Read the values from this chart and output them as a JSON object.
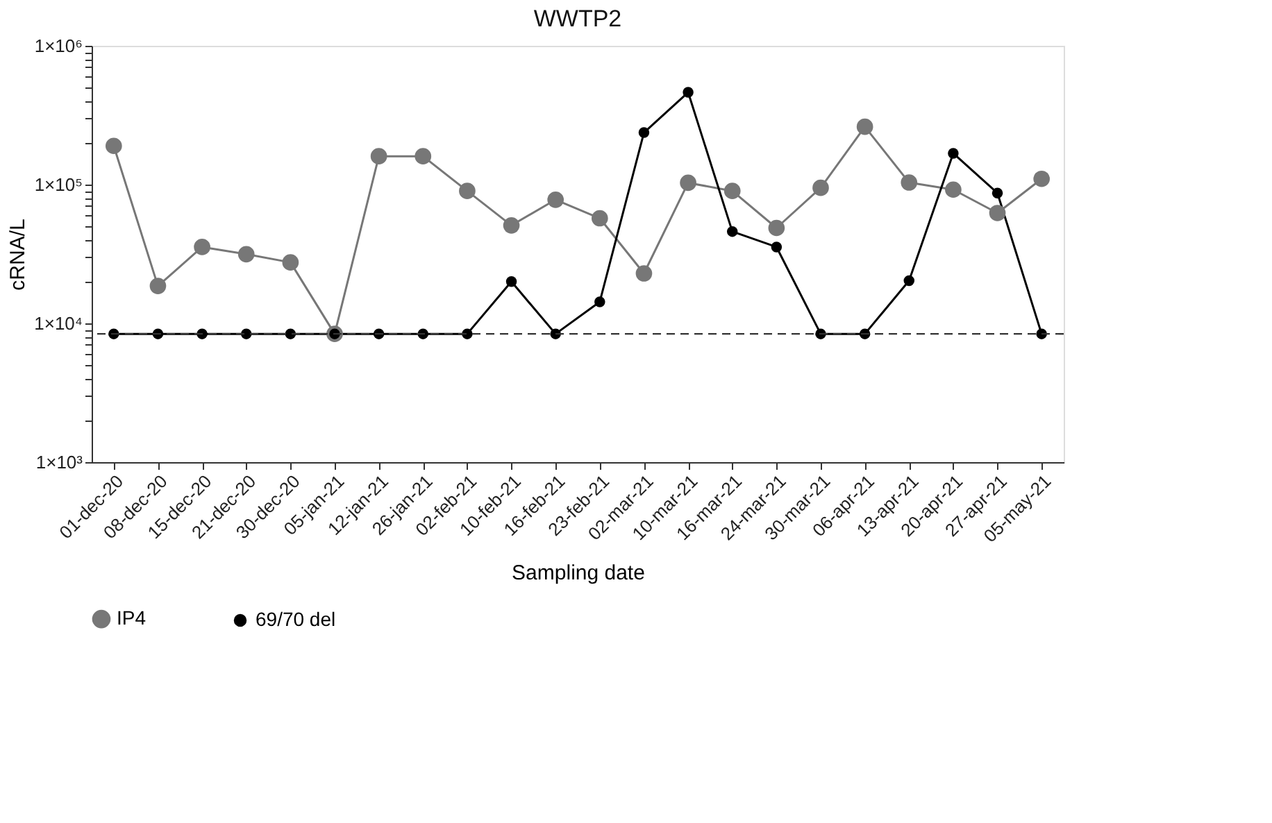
{
  "chart_data": {
    "type": "line",
    "title": "WWTP2",
    "xlabel": "Sampling date",
    "ylabel": "cRNA/L",
    "categories": [
      "01-dec-20",
      "08-dec-20",
      "15-dec-20",
      "21-dec-20",
      "30-dec-20",
      "05-jan-21",
      "12-jan-21",
      "26-jan-21",
      "02-feb-21",
      "10-feb-21",
      "16-feb-21",
      "23-feb-21",
      "02-mar-21",
      "10-mar-21",
      "16-mar-21",
      "24-mar-21",
      "30-mar-21",
      "06-apr-21",
      "13-apr-21",
      "20-apr-21",
      "27-apr-21",
      "05-may-21"
    ],
    "series": [
      {
        "name": "IP4",
        "color": "#777777",
        "values": [
          190000,
          18600,
          35500,
          31500,
          27500,
          8400,
          160000,
          160000,
          90000,
          50800,
          77800,
          57200,
          22900,
          103000,
          90000,
          48700,
          94800,
          261000,
          103500,
          92000,
          62400,
          110000
        ]
      },
      {
        "name": "69/70 del",
        "color": "#000000",
        "values": [
          8400,
          8400,
          8400,
          8400,
          8400,
          8400,
          8400,
          8400,
          8400,
          20000,
          8400,
          14300,
          237000,
          462000,
          45900,
          35500,
          8400,
          8400,
          20300,
          168000,
          86900,
          8400
        ]
      }
    ],
    "log": "y",
    "ylim": [
      1000,
      1000000
    ],
    "yticks": [
      {
        "value": 1000,
        "label": "1×10³"
      },
      {
        "value": 2000,
        "label": null
      },
      {
        "value": 3000,
        "label": null
      },
      {
        "value": 4000,
        "label": null
      },
      {
        "value": 5000,
        "label": null
      },
      {
        "value": 6000,
        "label": null
      },
      {
        "value": 7000,
        "label": null
      },
      {
        "value": 8000,
        "label": null
      },
      {
        "value": 9000,
        "label": null
      },
      {
        "value": 10000,
        "label": "1×10⁴"
      },
      {
        "value": 20000,
        "label": null
      },
      {
        "value": 30000,
        "label": null
      },
      {
        "value": 40000,
        "label": null
      },
      {
        "value": 50000,
        "label": null
      },
      {
        "value": 60000,
        "label": null
      },
      {
        "value": 70000,
        "label": null
      },
      {
        "value": 80000,
        "label": null
      },
      {
        "value": 90000,
        "label": null
      },
      {
        "value": 100000,
        "label": "1×10⁵"
      },
      {
        "value": 200000,
        "label": null
      },
      {
        "value": 300000,
        "label": null
      },
      {
        "value": 400000,
        "label": null
      },
      {
        "value": 500000,
        "label": null
      },
      {
        "value": 600000,
        "label": null
      },
      {
        "value": 700000,
        "label": null
      },
      {
        "value": 800000,
        "label": null
      },
      {
        "value": 900000,
        "label": null
      },
      {
        "value": 1000000,
        "label": "1×10⁶"
      }
    ],
    "ref_lines": [
      {
        "axis": "y",
        "value": 8400,
        "label": null,
        "color": "#333333",
        "line_style": "dashed"
      }
    ],
    "marker": "circle",
    "line_style": "solid",
    "grid": false,
    "legend": "bottom"
  }
}
